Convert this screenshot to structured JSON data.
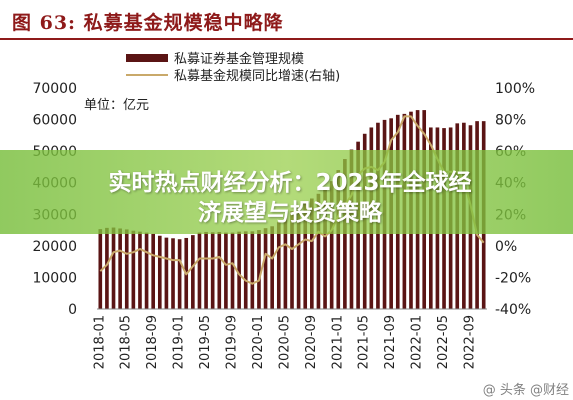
{
  "figure": {
    "title": "图 63:  私募基金规模稳中略降",
    "unit_label": "单位：亿元"
  },
  "banner": {
    "line1": "实时热点财经分析：2023年全球经",
    "line2": "济展望与投资策略"
  },
  "watermark": "@ 头条 @财经",
  "colors": {
    "bar": "#5a1414",
    "line": "#c9a96a",
    "title": "#8e1a1a"
  },
  "chart_data": {
    "type": "bar",
    "legend": [
      {
        "name": "私募证券基金管理规模",
        "kind": "bar"
      },
      {
        "name": "私募基金规模同比增速(右轴)",
        "kind": "line"
      }
    ],
    "x_tick_labels": [
      "2018-01",
      "2018-05",
      "2018-09",
      "2019-01",
      "2019-05",
      "2019-09",
      "2020-01",
      "2020-05",
      "2020-09",
      "2021-01",
      "2021-05",
      "2021-09",
      "2022-01",
      "2022-05",
      "2022-09"
    ],
    "x_start": "2018-01",
    "y_left": {
      "ticks": [
        0,
        10000,
        20000,
        30000,
        40000,
        50000,
        60000,
        70000
      ],
      "range": [
        0,
        70000
      ]
    },
    "y_right": {
      "ticks": [
        "-40%",
        "-20%",
        "0%",
        "20%",
        "40%",
        "60%",
        "80%",
        "100%"
      ],
      "range": [
        -40,
        100
      ]
    },
    "series": [
      {
        "name": "私募证券基金管理规模",
        "axis": "left",
        "values": [
          25300,
          25700,
          25800,
          25500,
          25200,
          24800,
          24500,
          24200,
          23800,
          23200,
          22600,
          22400,
          22100,
          22500,
          23400,
          24200,
          24400,
          24300,
          24400,
          24200,
          24200,
          24500,
          24600,
          24600,
          25000,
          25600,
          26200,
          27500,
          28800,
          31000,
          32400,
          33800,
          35000,
          36500,
          37800,
          40500,
          44000,
          47500,
          50500,
          53000,
          55500,
          57500,
          59000,
          59900,
          60400,
          61500,
          61800,
          62500,
          63000,
          63000,
          57500,
          57500,
          57300,
          57500,
          58800,
          59000,
          58200,
          59500,
          59500
        ]
      },
      {
        "name": "私募基金规模同比增速(右轴)",
        "axis": "right",
        "values": [
          -16,
          -12,
          -4,
          -3,
          -5,
          -4,
          -2,
          -4,
          -6,
          -7,
          -8,
          -9,
          -9,
          -18,
          -13,
          -8,
          -8,
          -8,
          -7,
          -12,
          -11,
          -18,
          -22,
          -24,
          -22,
          -5,
          -8,
          -1,
          1,
          -2,
          1,
          4,
          3,
          9,
          6,
          10,
          19,
          26,
          32,
          45,
          49,
          50,
          48,
          53,
          67,
          72,
          82,
          82,
          76,
          71,
          64,
          55,
          47,
          47,
          47,
          41,
          26,
          7,
          2
        ]
      }
    ]
  }
}
